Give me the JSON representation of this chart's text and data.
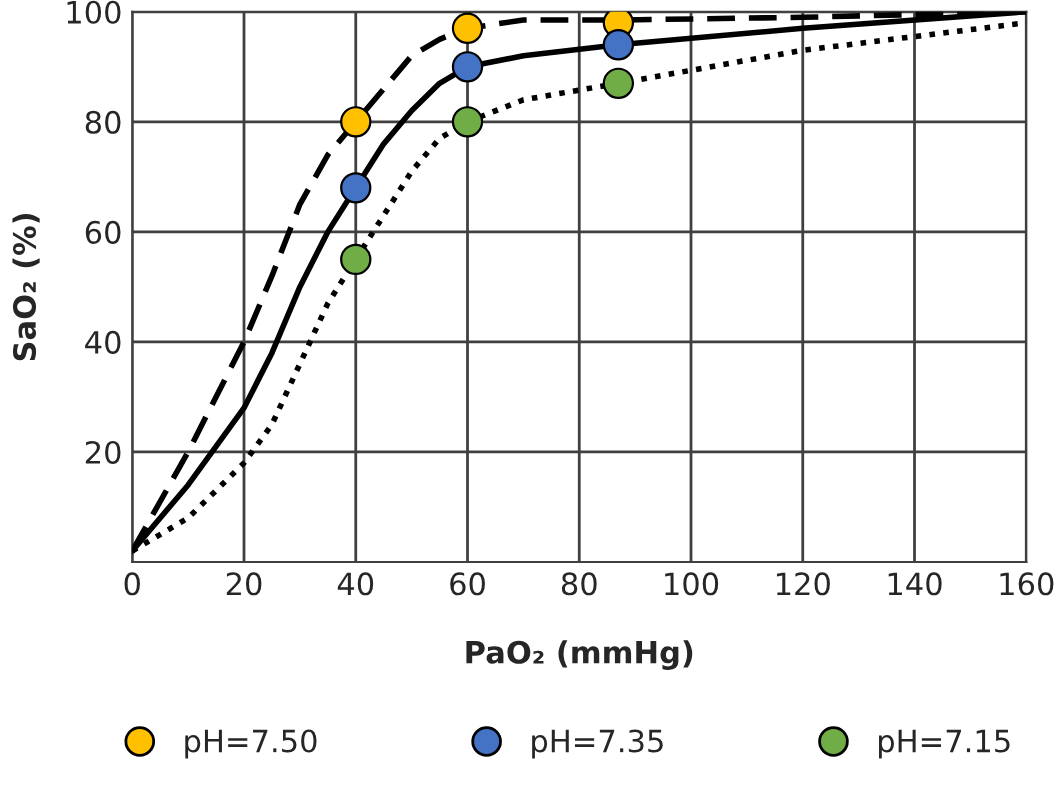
{
  "chart_data": {
    "type": "line",
    "xlabel": "PaO₂ (mmHg)",
    "ylabel": "SaO₂ (%)",
    "xlim": [
      0,
      160
    ],
    "xticks": [
      0,
      20,
      40,
      60,
      80,
      100,
      120,
      140,
      160
    ],
    "ylim": [
      0,
      100
    ],
    "yticks": [
      20,
      40,
      60,
      80,
      100
    ],
    "grid": true,
    "legend": "bottom",
    "series": [
      {
        "color": "#000000",
        "line_style": "dashed",
        "marker": "none",
        "x": [
          0,
          10,
          20,
          25,
          30,
          35,
          40,
          45,
          50,
          55,
          60,
          70,
          87,
          120,
          160
        ],
        "values": [
          2,
          20,
          40,
          52,
          65,
          74,
          80,
          86,
          92,
          95,
          97,
          98.5,
          98.5,
          99,
          100
        ]
      },
      {
        "color": "#000000",
        "line_style": "solid",
        "marker": "none",
        "x": [
          0,
          10,
          20,
          25,
          30,
          35,
          40,
          45,
          50,
          55,
          60,
          70,
          87,
          120,
          160
        ],
        "values": [
          2,
          14,
          28,
          38,
          50,
          60,
          68,
          76,
          82,
          87,
          90,
          92,
          94,
          97,
          100
        ]
      },
      {
        "color": "#000000",
        "line_style": "dotted",
        "marker": "none",
        "x": [
          0,
          10,
          20,
          25,
          30,
          35,
          40,
          45,
          50,
          55,
          60,
          70,
          87,
          120,
          160
        ],
        "values": [
          2,
          8,
          18,
          25,
          36,
          47,
          55,
          63,
          71,
          77,
          80,
          84,
          87,
          93,
          98
        ]
      },
      {
        "type": "scatter",
        "name": "pH=7.50",
        "color": "#ffc000",
        "marker": "circle",
        "x": [
          40,
          60,
          87
        ],
        "values": [
          80,
          97,
          98
        ]
      },
      {
        "type": "scatter",
        "name": "pH=7.35",
        "color": "#4472c4",
        "marker": "circle",
        "x": [
          40,
          60,
          87
        ],
        "values": [
          68,
          90,
          94
        ]
      },
      {
        "type": "scatter",
        "name": "pH=7.15",
        "color": "#70ad47",
        "marker": "circle",
        "x": [
          40,
          60,
          87
        ],
        "values": [
          55,
          80,
          87
        ]
      }
    ]
  }
}
